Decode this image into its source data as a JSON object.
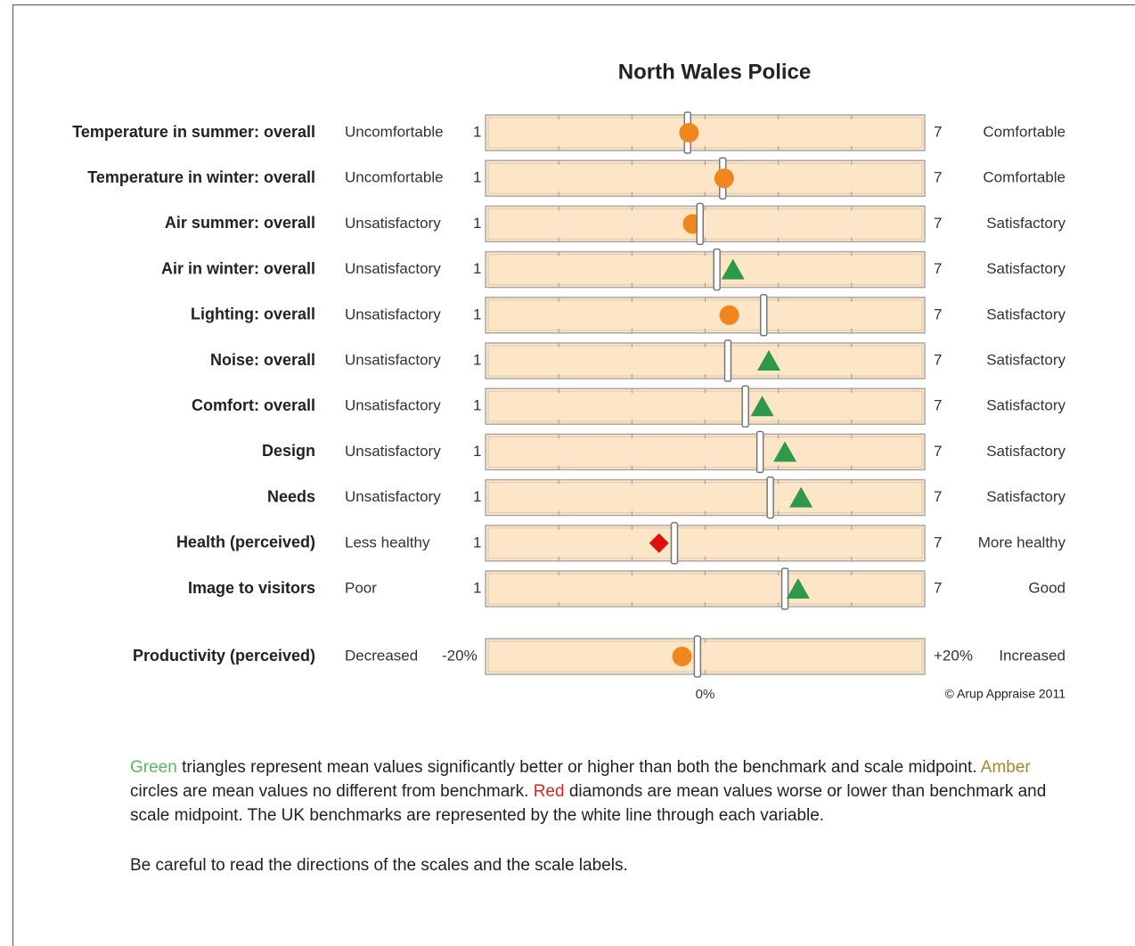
{
  "chart_data": {
    "type": "benchmark-scale",
    "title": "North Wales Police",
    "xlim": [
      1,
      7
    ],
    "xticks": [
      1,
      2,
      3,
      4,
      5,
      6,
      7
    ],
    "marker_colors": {
      "triangle": "#2e9a48",
      "circle": "#f0861d",
      "diamond": "#e01010"
    },
    "rows": [
      {
        "label": "Temperature in summer: overall",
        "low": "Uncomfortable",
        "high": "Comfortable",
        "benchmark": 3.76,
        "mean": 3.78,
        "marker": "circle"
      },
      {
        "label": "Temperature in winter: overall",
        "low": "Uncomfortable",
        "high": "Comfortable",
        "benchmark": 4.24,
        "mean": 4.26,
        "marker": "circle"
      },
      {
        "label": "Air summer: overall",
        "low": "Unsatisfactory",
        "high": "Satisfactory",
        "benchmark": 3.93,
        "mean": 3.83,
        "marker": "circle"
      },
      {
        "label": "Air in winter: overall",
        "low": "Unsatisfactory",
        "high": "Satisfactory",
        "benchmark": 4.16,
        "mean": 4.38,
        "marker": "triangle"
      },
      {
        "label": "Lighting: overall",
        "low": "Unsatisfactory",
        "high": "Satisfactory",
        "benchmark": 4.8,
        "mean": 4.33,
        "marker": "circle"
      },
      {
        "label": "Noise: overall",
        "low": "Unsatisfactory",
        "high": "Satisfactory",
        "benchmark": 4.31,
        "mean": 4.87,
        "marker": "triangle"
      },
      {
        "label": "Comfort: overall",
        "low": "Unsatisfactory",
        "high": "Satisfactory",
        "benchmark": 4.55,
        "mean": 4.78,
        "marker": "triangle"
      },
      {
        "label": "Design",
        "low": "Unsatisfactory",
        "high": "Satisfactory",
        "benchmark": 4.75,
        "mean": 5.09,
        "marker": "triangle"
      },
      {
        "label": "Needs",
        "low": "Unsatisfactory",
        "high": "Satisfactory",
        "benchmark": 4.89,
        "mean": 5.31,
        "marker": "triangle"
      },
      {
        "label": "Health (perceived)",
        "low": "Less healthy",
        "high": "More healthy",
        "benchmark": 3.58,
        "mean": 3.37,
        "marker": "diamond"
      },
      {
        "label": "Image to visitors",
        "low": "Poor",
        "high": "Good",
        "benchmark": 5.09,
        "mean": 5.27,
        "marker": "triangle"
      }
    ],
    "productivity": {
      "label": "Productivity (perceived)",
      "low": "Decreased",
      "high": "Increased",
      "xlim": [
        {
          "value": -20,
          "label": "-20%"
        },
        {
          "value": 20,
          "label": "+20%"
        }
      ],
      "xticks": [
        {
          "value": 0,
          "label": "0%"
        }
      ],
      "benchmark": -0.7,
      "mean": -2.1,
      "marker": "circle"
    },
    "copyright": "© Arup Appraise 2011"
  },
  "notes": [
    [
      {
        "text": "Green",
        "color": "#5cb85c"
      },
      {
        "text": " triangles represent mean values significantly better or higher than both the benchmark and scale midpoint. "
      },
      {
        "text": "Amber",
        "color": "#a8862a"
      },
      {
        "text": " circles are mean values no different from benchmark. "
      },
      {
        "text": "Red",
        "color": "#e02020"
      },
      {
        "text": " diamonds are mean values worse or lower than benchmark and scale midpoint. The UK benchmarks are represented by the white line through each variable."
      }
    ],
    [
      {
        "text": "Be careful to read the directions of the scales and the scale labels."
      }
    ]
  ]
}
